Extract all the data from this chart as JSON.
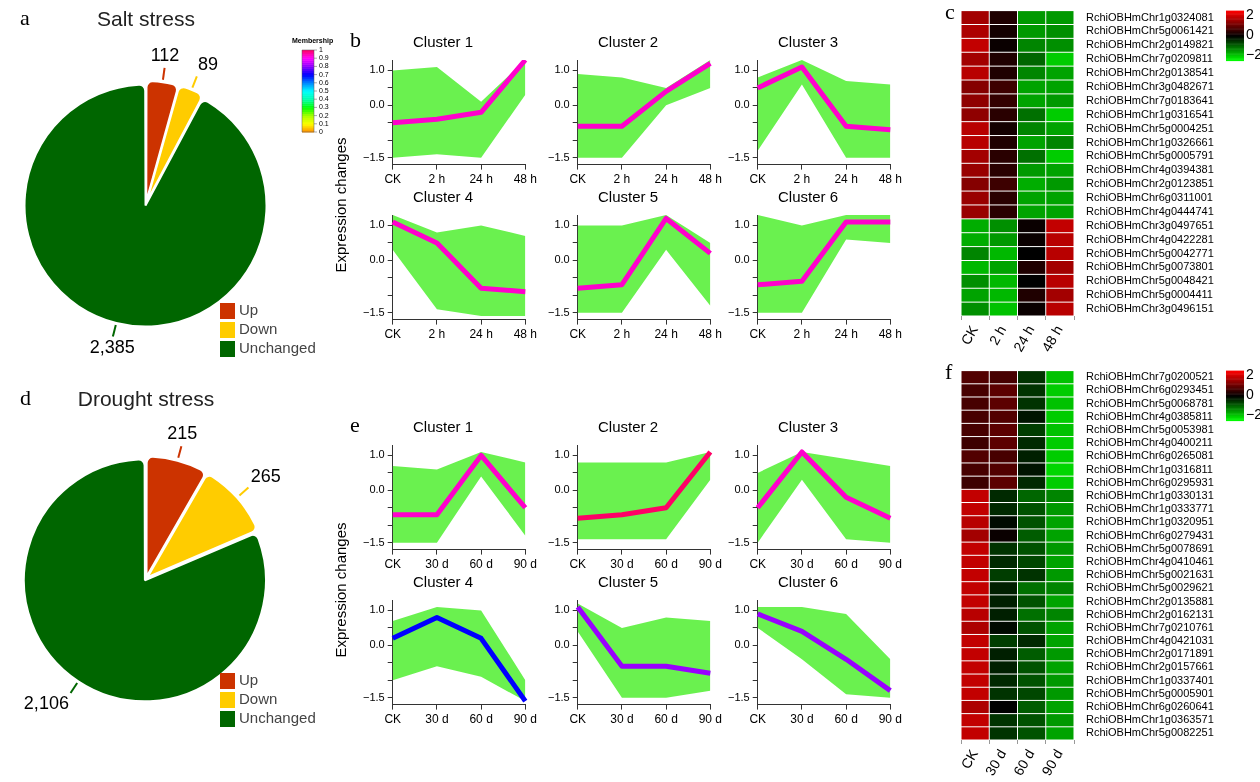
{
  "chart_data": [
    {
      "type": "pie",
      "title": "Salt stress",
      "annotations": [
        "a"
      ],
      "categories": [
        "Up",
        "Down",
        "Unchanged"
      ],
      "values": [
        112,
        89,
        2385
      ],
      "value_labels": [
        "112",
        "89",
        "2,385"
      ],
      "colors": [
        "#cc3300",
        "#ffcc00",
        "#006600"
      ],
      "legend": "bottom right"
    },
    {
      "type": "line",
      "title": "Cluster 1",
      "annotations": [
        "b"
      ],
      "ylabel": "Expression changes",
      "clabel": "Membership",
      "clim": [
        0,
        1
      ],
      "cticks": [
        0,
        0.1,
        0.2,
        0.3,
        0.4,
        0.5,
        0.6,
        0.7,
        0.8,
        0.9,
        1
      ],
      "categories": [
        "CK",
        "2 h",
        "24 h",
        "48 h"
      ],
      "ylim": [
        -1.7,
        1.3
      ],
      "yticks": [
        {
          "value": 1,
          "label": "1.0"
        },
        {
          "value": 0.5,
          "label": null
        },
        {
          "value": 0,
          "label": "0.0"
        },
        {
          "value": -0.5,
          "label": null
        },
        {
          "value": -1,
          "label": null
        },
        {
          "value": -1.5,
          "label": "−1.5"
        }
      ],
      "series": [
        {
          "color": "#ff00cc",
          "values": [
            -0.5,
            -0.4,
            -0.2,
            1.3
          ],
          "lower": [
            -1.5,
            -1.4,
            -1.5,
            0.3
          ],
          "upper": [
            1.0,
            1.1,
            0.1,
            1.3
          ]
        }
      ]
    },
    {
      "type": "line",
      "title": "Cluster 2",
      "categories": [
        "CK",
        "2 h",
        "24 h",
        "48 h"
      ],
      "ylim": [
        -1.7,
        1.3
      ],
      "yticks": [
        {
          "value": 1,
          "label": "1.0"
        },
        {
          "value": 0.5,
          "label": null
        },
        {
          "value": 0,
          "label": "0.0"
        },
        {
          "value": -0.5,
          "label": null
        },
        {
          "value": -1,
          "label": null
        },
        {
          "value": -1.5,
          "label": "−1.5"
        }
      ],
      "series": [
        {
          "color": "#ff00cc",
          "values": [
            -0.6,
            -0.6,
            0.4,
            1.2
          ],
          "lower": [
            -1.5,
            -1.5,
            0.0,
            0.5
          ],
          "upper": [
            0.9,
            0.8,
            0.5,
            1.3
          ]
        }
      ]
    },
    {
      "type": "line",
      "title": "Cluster 3",
      "categories": [
        "CK",
        "2 h",
        "24 h",
        "48 h"
      ],
      "ylim": [
        -1.7,
        1.3
      ],
      "yticks": [
        {
          "value": 1,
          "label": "1.0"
        },
        {
          "value": 0.5,
          "label": null
        },
        {
          "value": 0,
          "label": "0.0"
        },
        {
          "value": -0.5,
          "label": null
        },
        {
          "value": -1,
          "label": null
        },
        {
          "value": -1.5,
          "label": "−1.5"
        }
      ],
      "series": [
        {
          "color": "#ff00cc",
          "values": [
            0.5,
            1.1,
            -0.6,
            -0.7
          ],
          "lower": [
            -1.3,
            0.6,
            -1.5,
            -1.5
          ],
          "upper": [
            0.8,
            1.3,
            0.7,
            0.6
          ]
        }
      ]
    },
    {
      "type": "line",
      "title": "Cluster 4",
      "categories": [
        "CK",
        "2 h",
        "24 h",
        "48 h"
      ],
      "ylim": [
        -1.7,
        1.3
      ],
      "yticks": [
        {
          "value": 1,
          "label": "1.0"
        },
        {
          "value": 0.5,
          "label": null
        },
        {
          "value": 0,
          "label": "0.0"
        },
        {
          "value": -0.5,
          "label": null
        },
        {
          "value": -1,
          "label": null
        },
        {
          "value": -1.5,
          "label": "−1.5"
        }
      ],
      "series": [
        {
          "color": "#ff00cc",
          "values": [
            1.1,
            0.5,
            -0.8,
            -0.9
          ],
          "lower": [
            0.3,
            -1.4,
            -1.6,
            -1.6
          ],
          "upper": [
            1.3,
            0.8,
            1.0,
            0.7
          ]
        }
      ]
    },
    {
      "type": "line",
      "title": "Cluster 5",
      "categories": [
        "CK",
        "2 h",
        "24 h",
        "48 h"
      ],
      "ylim": [
        -1.7,
        1.3
      ],
      "yticks": [
        {
          "value": 1,
          "label": "1.0"
        },
        {
          "value": 0.5,
          "label": null
        },
        {
          "value": 0,
          "label": "0.0"
        },
        {
          "value": -0.5,
          "label": null
        },
        {
          "value": -1,
          "label": null
        },
        {
          "value": -1.5,
          "label": "−1.5"
        }
      ],
      "series": [
        {
          "color": "#ff00cc",
          "values": [
            -0.8,
            -0.7,
            1.2,
            0.2
          ],
          "lower": [
            -1.5,
            -1.5,
            0.3,
            -1.3
          ],
          "upper": [
            1.0,
            1.0,
            1.3,
            0.5
          ]
        }
      ]
    },
    {
      "type": "line",
      "title": "Cluster 6",
      "categories": [
        "CK",
        "2 h",
        "24 h",
        "48 h"
      ],
      "ylim": [
        -1.7,
        1.3
      ],
      "yticks": [
        {
          "value": 1,
          "label": "1.0"
        },
        {
          "value": 0.5,
          "label": null
        },
        {
          "value": 0,
          "label": "0.0"
        },
        {
          "value": -0.5,
          "label": null
        },
        {
          "value": -1,
          "label": null
        },
        {
          "value": -1.5,
          "label": "−1.5"
        }
      ],
      "series": [
        {
          "color": "#ff00cc",
          "values": [
            -0.7,
            -0.6,
            1.1,
            1.1
          ],
          "lower": [
            -1.5,
            -1.5,
            0.6,
            0.5
          ],
          "upper": [
            1.3,
            1.0,
            1.3,
            1.3
          ]
        }
      ]
    },
    {
      "type": "heatmap",
      "annotations": [
        "c"
      ],
      "categories": [
        "CK",
        "2 h",
        "24 h",
        "48 h"
      ],
      "y_categories": [
        "RchiOBHmChr1g0324081",
        "RchiOBHmChr5g0061421",
        "RchiOBHmChr2g0149821",
        "RchiOBHmChr7g0209811",
        "RchiOBHmChr2g0138541",
        "RchiOBHmChr3g0482671",
        "RchiOBHmChr7g0183641",
        "RchiOBHmChr1g0316541",
        "RchiOBHmChr5g0004251",
        "RchiOBHmChr1g0326661",
        "RchiOBHmChr5g0005791",
        "RchiOBHmChr4g0394381",
        "RchiOBHmChr2g0123851",
        "RchiOBHmChr6g0311001",
        "RchiOBHmChr4g0444741",
        "RchiOBHmChr3g0497651",
        "RchiOBHmChr4g0422281",
        "RchiOBHmChr5g0042771",
        "RchiOBHmChr5g0073801",
        "RchiOBHmChr5g0048421",
        "RchiOBHmChr5g0004411",
        "RchiOBHmChr3g0496151"
      ],
      "cells": [
        [
          1.6,
          0.3,
          -1.5,
          -1.5
        ],
        [
          1.7,
          0.2,
          -1.5,
          -1.4
        ],
        [
          1.9,
          0.1,
          -1.3,
          -1.4
        ],
        [
          1.6,
          0.3,
          -1.0,
          -2.0
        ],
        [
          1.8,
          0.3,
          -1.3,
          -1.6
        ],
        [
          1.3,
          0.6,
          -1.6,
          -1.6
        ],
        [
          1.4,
          0.5,
          -1.6,
          -1.5
        ],
        [
          1.4,
          0.4,
          -1.1,
          -2.0
        ],
        [
          1.8,
          0.2,
          -1.3,
          -1.6
        ],
        [
          1.8,
          0.3,
          -1.6,
          -1.3
        ],
        [
          1.6,
          0.4,
          -1.1,
          -2.0
        ],
        [
          1.5,
          0.4,
          -1.5,
          -1.6
        ],
        [
          1.3,
          0.6,
          -1.7,
          -1.5
        ],
        [
          1.5,
          0.4,
          -1.6,
          -1.6
        ],
        [
          1.5,
          0.4,
          -1.6,
          -1.6
        ],
        [
          -1.7,
          -1.4,
          0.1,
          1.9
        ],
        [
          -1.7,
          -1.5,
          0.1,
          1.8
        ],
        [
          -1.3,
          -1.8,
          0.0,
          1.8
        ],
        [
          -1.8,
          -1.6,
          0.3,
          1.6
        ],
        [
          -1.4,
          -1.8,
          0.0,
          1.8
        ],
        [
          -1.6,
          -1.8,
          0.3,
          1.6
        ],
        [
          -1.4,
          -1.9,
          0.1,
          1.8
        ]
      ],
      "clim": [
        -2.5,
        2.5
      ],
      "cticks": [
        2,
        0,
        {
          "value": -2,
          "label": "−2"
        }
      ]
    },
    {
      "type": "pie",
      "title": "Drought stress",
      "annotations": [
        "d"
      ],
      "categories": [
        "Up",
        "Down",
        "Unchanged"
      ],
      "values": [
        215,
        265,
        2106
      ],
      "value_labels": [
        "215",
        "265",
        "2,106"
      ],
      "colors": [
        "#cc3300",
        "#ffcc00",
        "#006600"
      ],
      "legend": "bottom right"
    },
    {
      "type": "line",
      "title": "Cluster 1",
      "annotations": [
        "e"
      ],
      "ylabel": "Expression changes",
      "categories": [
        "CK",
        "30 d",
        "60 d",
        "90 d"
      ],
      "ylim": [
        -1.7,
        1.3
      ],
      "yticks": [
        {
          "value": 1,
          "label": "1.0"
        },
        {
          "value": 0.5,
          "label": null
        },
        {
          "value": 0,
          "label": "0.0"
        },
        {
          "value": -0.5,
          "label": null
        },
        {
          "value": -1,
          "label": null
        },
        {
          "value": -1.5,
          "label": "−1.5"
        }
      ],
      "series": [
        {
          "color": "#ff00cc",
          "values": [
            -0.7,
            -0.7,
            1.0,
            -0.5
          ],
          "lower": [
            -1.5,
            -1.5,
            0.4,
            -1.3
          ],
          "upper": [
            0.7,
            0.6,
            1.1,
            0.8
          ]
        }
      ]
    },
    {
      "type": "line",
      "title": "Cluster 2",
      "categories": [
        "CK",
        "30 d",
        "60 d",
        "90 d"
      ],
      "ylim": [
        -1.7,
        1.3
      ],
      "yticks": [
        {
          "value": 1,
          "label": "1.0"
        },
        {
          "value": 0.5,
          "label": null
        },
        {
          "value": 0,
          "label": "0.0"
        },
        {
          "value": -0.5,
          "label": null
        },
        {
          "value": -1,
          "label": null
        },
        {
          "value": -1.5,
          "label": "−1.5"
        }
      ],
      "series": [
        {
          "color": "#ff0066",
          "values": [
            -0.8,
            -0.7,
            -0.5,
            1.1
          ],
          "lower": [
            -1.4,
            -1.4,
            -1.4,
            0.3
          ],
          "upper": [
            0.8,
            0.8,
            0.8,
            1.1
          ]
        }
      ]
    },
    {
      "type": "line",
      "title": "Cluster 3",
      "categories": [
        "CK",
        "30 d",
        "60 d",
        "90 d"
      ],
      "ylim": [
        -1.7,
        1.3
      ],
      "yticks": [
        {
          "value": 1,
          "label": "1.0"
        },
        {
          "value": 0.5,
          "label": null
        },
        {
          "value": 0,
          "label": "0.0"
        },
        {
          "value": -0.5,
          "label": null
        },
        {
          "value": -1,
          "label": null
        },
        {
          "value": -1.5,
          "label": "−1.5"
        }
      ],
      "series": [
        {
          "color": "#ff00cc",
          "values": [
            -0.5,
            1.1,
            -0.2,
            -0.8
          ],
          "lower": [
            -1.5,
            0.3,
            -1.4,
            -1.5
          ],
          "upper": [
            0.5,
            1.1,
            0.9,
            0.7
          ]
        }
      ]
    },
    {
      "type": "line",
      "title": "Cluster 4",
      "categories": [
        "CK",
        "30 d",
        "60 d",
        "90 d"
      ],
      "ylim": [
        -1.7,
        1.3
      ],
      "yticks": [
        {
          "value": 1,
          "label": "1.0"
        },
        {
          "value": 0.5,
          "label": null
        },
        {
          "value": 0,
          "label": "0.0"
        },
        {
          "value": -0.5,
          "label": null
        },
        {
          "value": -1,
          "label": null
        },
        {
          "value": -1.5,
          "label": "−1.5"
        }
      ],
      "series": [
        {
          "color": "#0000ff",
          "values": [
            0.2,
            0.8,
            0.2,
            -1.6
          ],
          "lower": [
            -1.0,
            -0.6,
            -0.9,
            -1.6
          ],
          "upper": [
            0.7,
            1.1,
            1.0,
            -1.0
          ]
        }
      ]
    },
    {
      "type": "line",
      "title": "Cluster 5",
      "categories": [
        "CK",
        "30 d",
        "60 d",
        "90 d"
      ],
      "ylim": [
        -1.7,
        1.3
      ],
      "yticks": [
        {
          "value": 1,
          "label": "1.0"
        },
        {
          "value": 0.5,
          "label": null
        },
        {
          "value": 0,
          "label": "0.0"
        },
        {
          "value": -0.5,
          "label": null
        },
        {
          "value": -1,
          "label": null
        },
        {
          "value": -1.5,
          "label": "−1.5"
        }
      ],
      "series": [
        {
          "color": "#9900ff",
          "values": [
            1.1,
            -0.6,
            -0.6,
            -0.8
          ],
          "lower": [
            0.4,
            -1.5,
            -1.5,
            -1.3
          ],
          "upper": [
            1.2,
            0.5,
            0.8,
            0.7
          ]
        }
      ]
    },
    {
      "type": "line",
      "title": "Cluster 6",
      "categories": [
        "CK",
        "30 d",
        "60 d",
        "90 d"
      ],
      "ylim": [
        -1.7,
        1.3
      ],
      "yticks": [
        {
          "value": 1,
          "label": "1.0"
        },
        {
          "value": 0.5,
          "label": null
        },
        {
          "value": 0,
          "label": "0.0"
        },
        {
          "value": -0.5,
          "label": null
        },
        {
          "value": -1,
          "label": null
        },
        {
          "value": -1.5,
          "label": "−1.5"
        }
      ],
      "series": [
        {
          "color": "#9900ff",
          "values": [
            0.9,
            0.4,
            -0.4,
            -1.3
          ],
          "lower": [
            0.5,
            -0.4,
            -1.4,
            -1.5
          ],
          "upper": [
            1.1,
            1.1,
            0.9,
            -0.4
          ]
        }
      ]
    },
    {
      "type": "heatmap",
      "annotations": [
        "f"
      ],
      "categories": [
        "CK",
        "30 d",
        "60 d",
        "90 d"
      ],
      "y_categories": [
        "RchiOBHmChr7g0200521",
        "RchiOBHmChr6g0293451",
        "RchiOBHmChr5g0068781",
        "RchiOBHmChr4g0385811",
        "RchiOBHmChr5g0053981",
        "RchiOBHmChr4g0400211",
        "RchiOBHmChr6g0265081",
        "RchiOBHmChr1g0316811",
        "RchiOBHmChr6g0295931",
        "RchiOBHmChr1g0330131",
        "RchiOBHmChr1g0333771",
        "RchiOBHmChr1g0320951",
        "RchiOBHmChr6g0279431",
        "RchiOBHmChr5g0078691",
        "RchiOBHmChr4g0410461",
        "RchiOBHmChr5g0021631",
        "RchiOBHmChr5g0029621",
        "RchiOBHmChr2g0135881",
        "RchiOBHmChr2g0162131",
        "RchiOBHmChr7g0210761",
        "RchiOBHmChr4g0421031",
        "RchiOBHmChr2g0171891",
        "RchiOBHmChr2g0157661",
        "RchiOBHmChr1g0337401",
        "RchiOBHmChr5g0005901",
        "RchiOBHmChr6g0260641",
        "RchiOBHmChr1g0363571",
        "RchiOBHmChr5g0082251"
      ],
      "cells": [
        [
          0.8,
          0.7,
          -0.5,
          -1.9
        ],
        [
          0.7,
          0.9,
          -0.5,
          -2.0
        ],
        [
          0.7,
          0.9,
          -0.5,
          -1.9
        ],
        [
          0.7,
          0.8,
          -0.2,
          -2.0
        ],
        [
          0.7,
          0.9,
          -0.6,
          -1.9
        ],
        [
          0.6,
          0.9,
          -0.4,
          -2.0
        ],
        [
          0.8,
          0.7,
          -0.3,
          -2.0
        ],
        [
          0.7,
          0.8,
          -0.2,
          -2.1
        ],
        [
          0.6,
          0.9,
          -0.4,
          -2.0
        ],
        [
          1.9,
          -0.4,
          -1.0,
          -1.3
        ],
        [
          1.9,
          -0.4,
          -0.8,
          -1.5
        ],
        [
          1.8,
          -0.1,
          -0.8,
          -1.6
        ],
        [
          1.6,
          0.1,
          -0.9,
          -1.6
        ],
        [
          1.9,
          -0.5,
          -0.8,
          -1.5
        ],
        [
          1.9,
          -0.4,
          -0.7,
          -1.6
        ],
        [
          1.9,
          -0.6,
          -0.5,
          -1.5
        ],
        [
          1.9,
          -0.3,
          -1.1,
          -1.3
        ],
        [
          1.9,
          -0.3,
          -0.8,
          -1.6
        ],
        [
          1.8,
          -0.3,
          -1.1,
          -1.3
        ],
        [
          1.7,
          -0.1,
          -0.8,
          -1.6
        ],
        [
          1.9,
          -0.6,
          -0.4,
          -1.6
        ],
        [
          1.9,
          -0.3,
          -0.9,
          -1.5
        ],
        [
          1.9,
          -0.3,
          -0.8,
          -1.6
        ],
        [
          1.9,
          -0.4,
          -0.8,
          -1.5
        ],
        [
          1.9,
          -0.5,
          -0.7,
          -1.5
        ],
        [
          1.7,
          0.0,
          -0.9,
          -1.6
        ],
        [
          1.9,
          -0.5,
          -0.8,
          -1.5
        ],
        [
          1.9,
          -0.5,
          -0.8,
          -1.6
        ]
      ],
      "clim": [
        -2.5,
        2.5
      ],
      "cticks": [
        2,
        0,
        {
          "value": -2,
          "label": "−2"
        }
      ]
    }
  ]
}
